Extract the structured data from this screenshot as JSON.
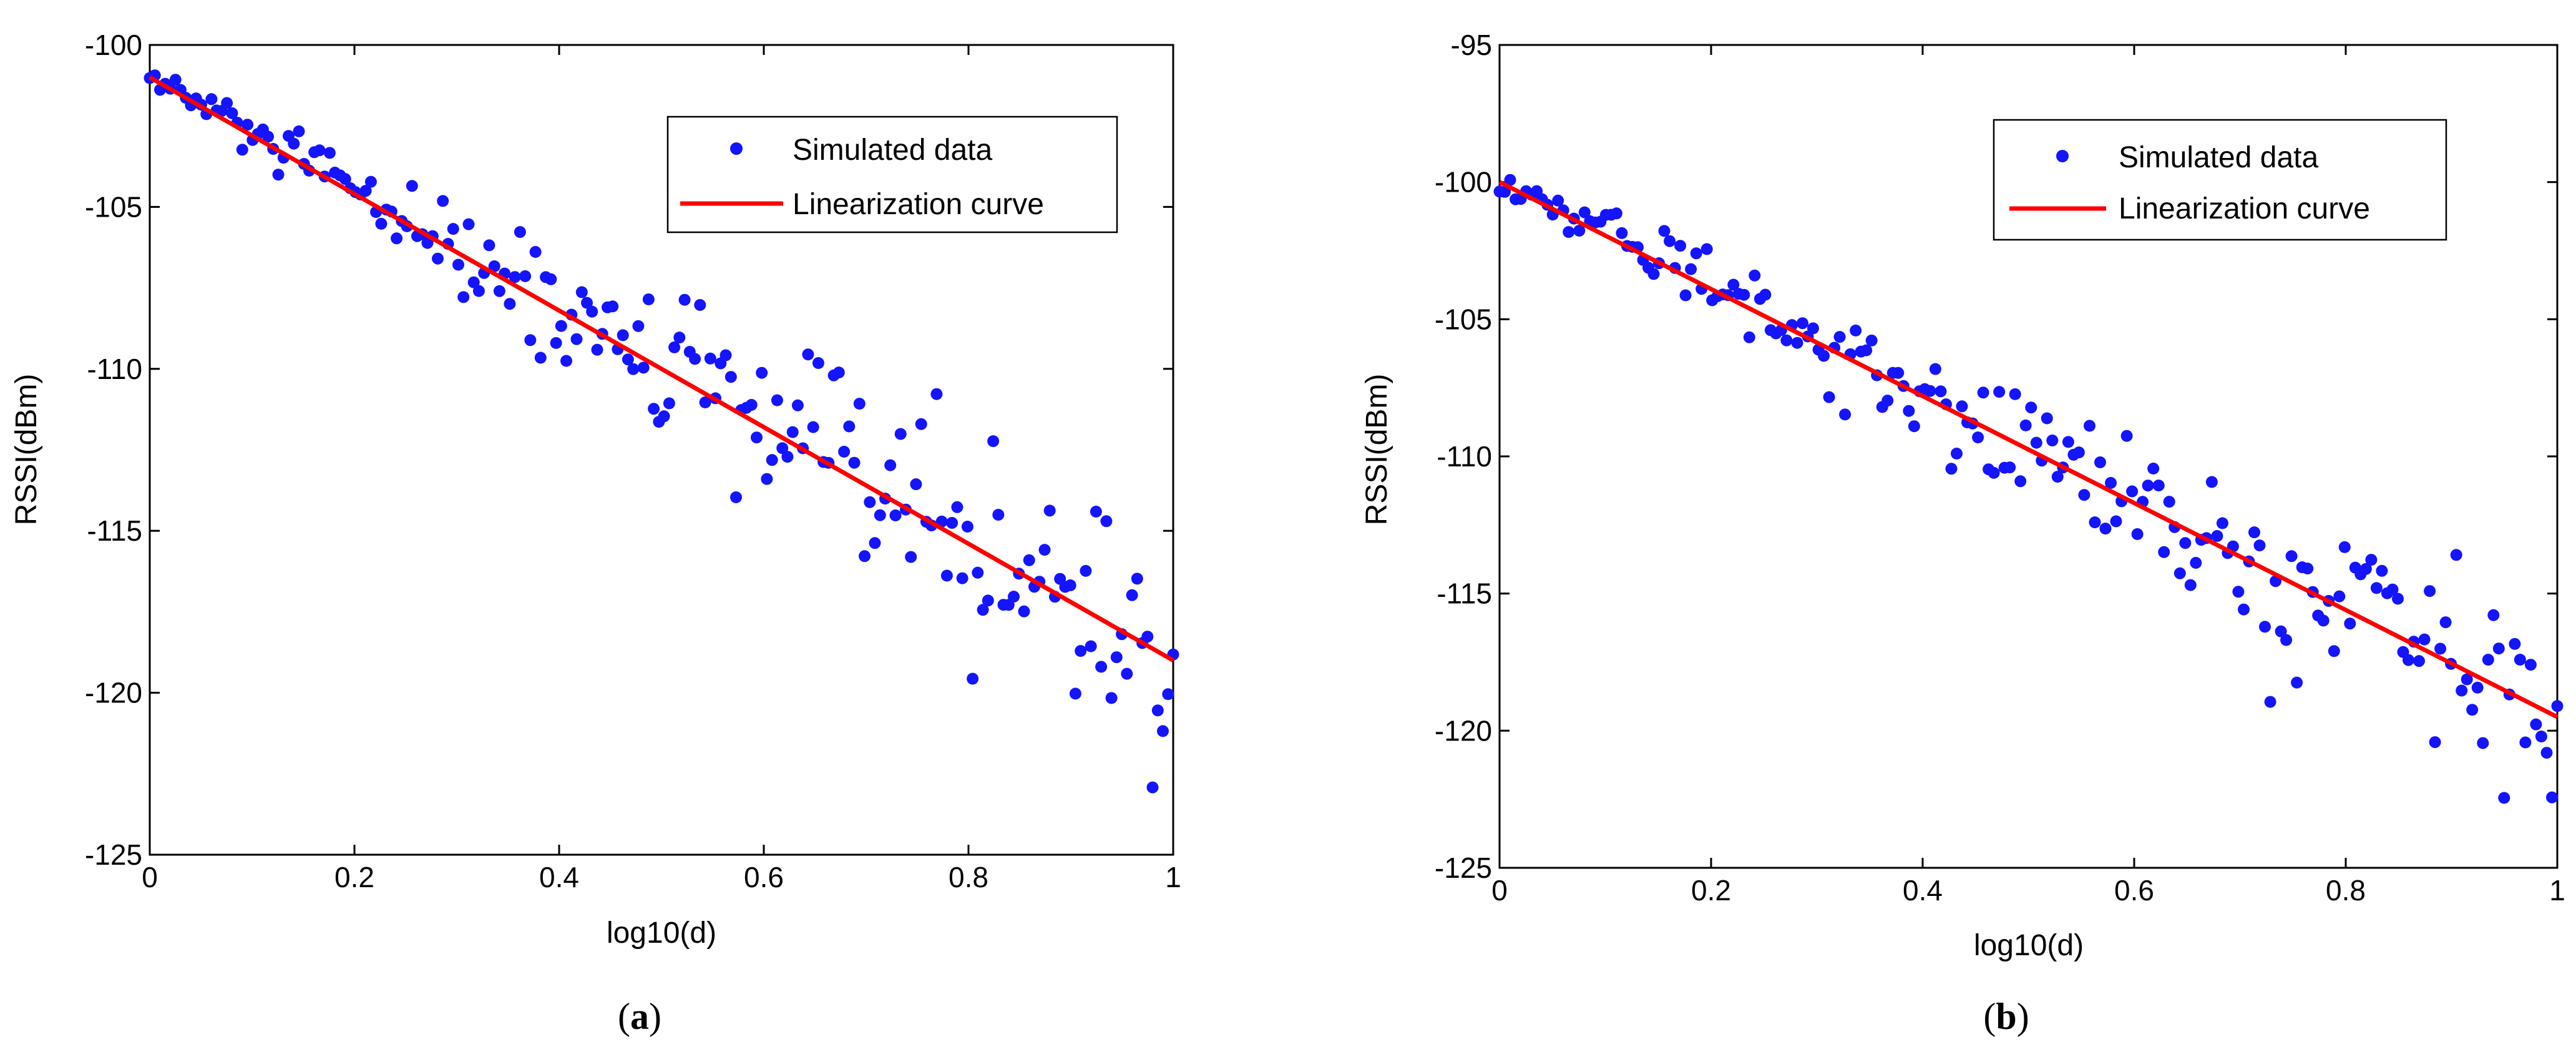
{
  "colors": {
    "points": "#1414ff",
    "line": "#ff0000",
    "axis": "#000000",
    "background": "#ffffff"
  },
  "chart_data": [
    {
      "id": "a",
      "type": "scatter",
      "caption": "(a)",
      "caption_letter": "a",
      "xlabel": "log10(d)",
      "ylabel": "RSSI(dBm)",
      "xlim": [
        0,
        1
      ],
      "ylim": [
        -125,
        -100
      ],
      "xticks": [
        0,
        0.2,
        0.4,
        0.6,
        0.8,
        1
      ],
      "xtick_labels": [
        "0",
        "0.2",
        "0.4",
        "0.6",
        "0.8",
        "1"
      ],
      "yticks": [
        -100,
        -105,
        -110,
        -115,
        -120,
        -125
      ],
      "ytick_labels": [
        "-100",
        "-105",
        "-110",
        "-115",
        "-120",
        "-125"
      ],
      "grid": false,
      "legend_position": "top-right",
      "series": [
        {
          "name": "Simulated data",
          "kind": "points",
          "seed": 12345,
          "n": 200,
          "noise_start": 0.3,
          "noise_end": 2.2
        },
        {
          "name": "Linearization curve",
          "kind": "line",
          "x": [
            0,
            1
          ],
          "y": [
            -101,
            -119
          ]
        }
      ]
    },
    {
      "id": "b",
      "type": "scatter",
      "caption": "(b)",
      "caption_letter": "b",
      "xlabel": "log10(d)",
      "ylabel": "RSSI(dBm)",
      "xlim": [
        0,
        1
      ],
      "ylim": [
        -125,
        -95
      ],
      "xticks": [
        0,
        0.2,
        0.4,
        0.6,
        0.8,
        1
      ],
      "xtick_labels": [
        "0",
        "0.2",
        "0.4",
        "0.6",
        "0.8",
        "1"
      ],
      "yticks": [
        -95,
        -100,
        -105,
        -110,
        -115,
        -120,
        -125
      ],
      "ytick_labels": [
        "-95",
        "-100",
        "-105",
        "-110",
        "-115",
        "-120",
        "-125"
      ],
      "grid": false,
      "legend_position": "top-right",
      "series": [
        {
          "name": "Simulated data",
          "kind": "points",
          "seed": 67890,
          "n": 200,
          "noise_start": 0.3,
          "noise_end": 2.0
        },
        {
          "name": "Linearization curve",
          "kind": "line",
          "x": [
            0,
            1
          ],
          "y": [
            -100,
            -119.5
          ]
        }
      ]
    }
  ]
}
